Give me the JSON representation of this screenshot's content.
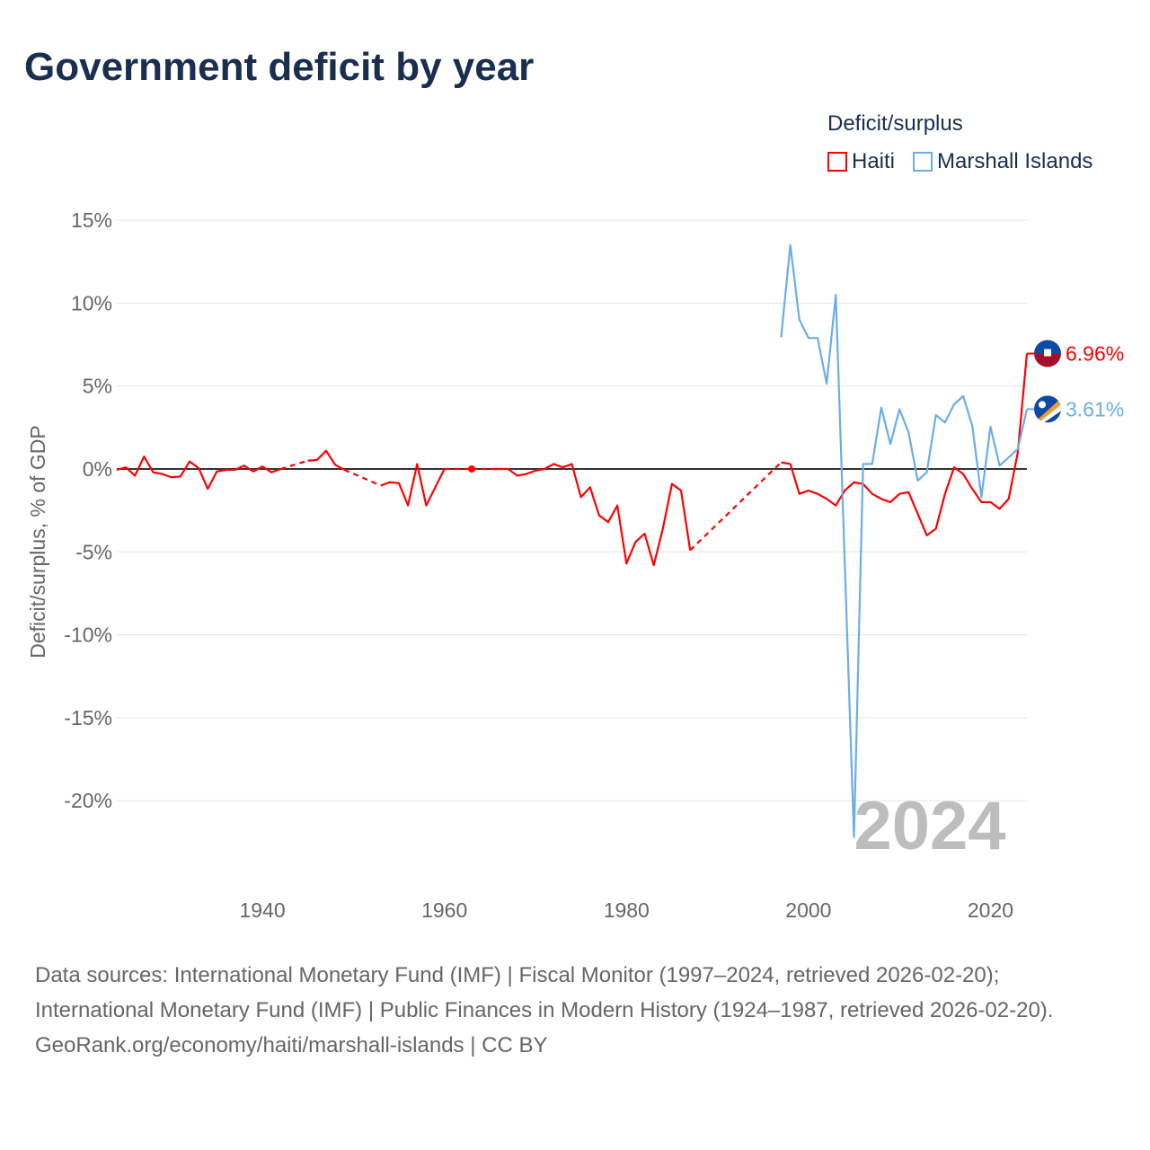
{
  "title": "Government deficit by year",
  "legend": {
    "title": "Deficit/surplus",
    "items": [
      "Haiti",
      "Marshall Islands"
    ]
  },
  "footer": {
    "sources": "Data sources: International Monetary Fund (IMF) | Fiscal Monitor (1997–2024, retrieved 2026-02-20); International Monetary Fund (IMF) | Public Finances in Modern History (1924–1987, retrieved 2026-02-20).",
    "link": "GeoRank.org/economy/haiti/marshall-islands | CC BY"
  },
  "chart_data": {
    "type": "line",
    "title": "Government deficit by year",
    "xlabel": "",
    "ylabel": "Deficit/surplus, % of GDP",
    "xlim": [
      1924,
      2024
    ],
    "ylim": [
      -23,
      15
    ],
    "x_ticks": [
      1940,
      1960,
      1980,
      2000,
      2020
    ],
    "y_ticks": [
      15,
      10,
      5,
      0,
      -5,
      -10,
      -15,
      -20
    ],
    "y_tick_labels": [
      "15%",
      "10%",
      "5%",
      "0%",
      "-5%",
      "-10%",
      "-15%",
      "-20%"
    ],
    "year_watermark": "2024",
    "legend_position": "top-right",
    "series": [
      {
        "name": "Haiti",
        "color": "#ff0000",
        "end_label": "6.96%",
        "flag": "haiti-flag",
        "start_year": 1924,
        "values": [
          -0.05,
          0.1,
          -0.4,
          0.75,
          -0.2,
          -0.3,
          -0.5,
          -0.45,
          0.45,
          0.05,
          -1.2,
          -0.15,
          -0.05,
          -0.05,
          0.2,
          -0.15,
          0.15,
          -0.2,
          0,
          null,
          null,
          0.5,
          0.55,
          1.1,
          0.25,
          -0.05,
          null,
          null,
          null,
          -1.0,
          -0.8,
          -0.85,
          -2.2,
          0.3,
          -2.2,
          -1.1,
          0,
          null,
          null,
          0,
          null,
          0,
          0,
          0,
          -0.4,
          -0.3,
          -0.1,
          0,
          0.3,
          0.1,
          0.3,
          -1.7,
          -1.1,
          -2.8,
          -3.2,
          -2.2,
          -5.7,
          -4.4,
          -3.9,
          -5.8,
          -3.6,
          -0.9,
          -1.3,
          -4.9,
          null,
          null,
          null,
          null,
          null,
          null,
          null,
          null,
          null,
          0.4,
          0.3,
          -1.5,
          -1.3,
          -1.5,
          -1.8,
          -2.2,
          -1.3,
          -0.8,
          -0.9,
          -1.5,
          -1.8,
          -2.0,
          -1.5,
          -1.4,
          -2.7,
          -4.0,
          -3.6,
          -1.5,
          0.1,
          -0.3,
          -1.2,
          -2.0,
          -2.0,
          -2.4,
          -1.8,
          1.0,
          6.96
        ]
      },
      {
        "name": "Marshall Islands",
        "color": "#6aaee8",
        "end_label": "3.61%",
        "flag": "marshall-islands-flag",
        "start_year": 1997,
        "values": [
          7.95,
          13.5,
          9.0,
          7.9,
          7.9,
          5.15,
          10.5,
          -5.9,
          -22.2,
          0.3,
          0.3,
          3.7,
          1.5,
          3.6,
          2.2,
          -0.7,
          -0.2,
          3.25,
          2.8,
          3.9,
          4.4,
          2.6,
          -1.7,
          2.55,
          0.2,
          0.7,
          1.2,
          3.61
        ]
      }
    ]
  }
}
